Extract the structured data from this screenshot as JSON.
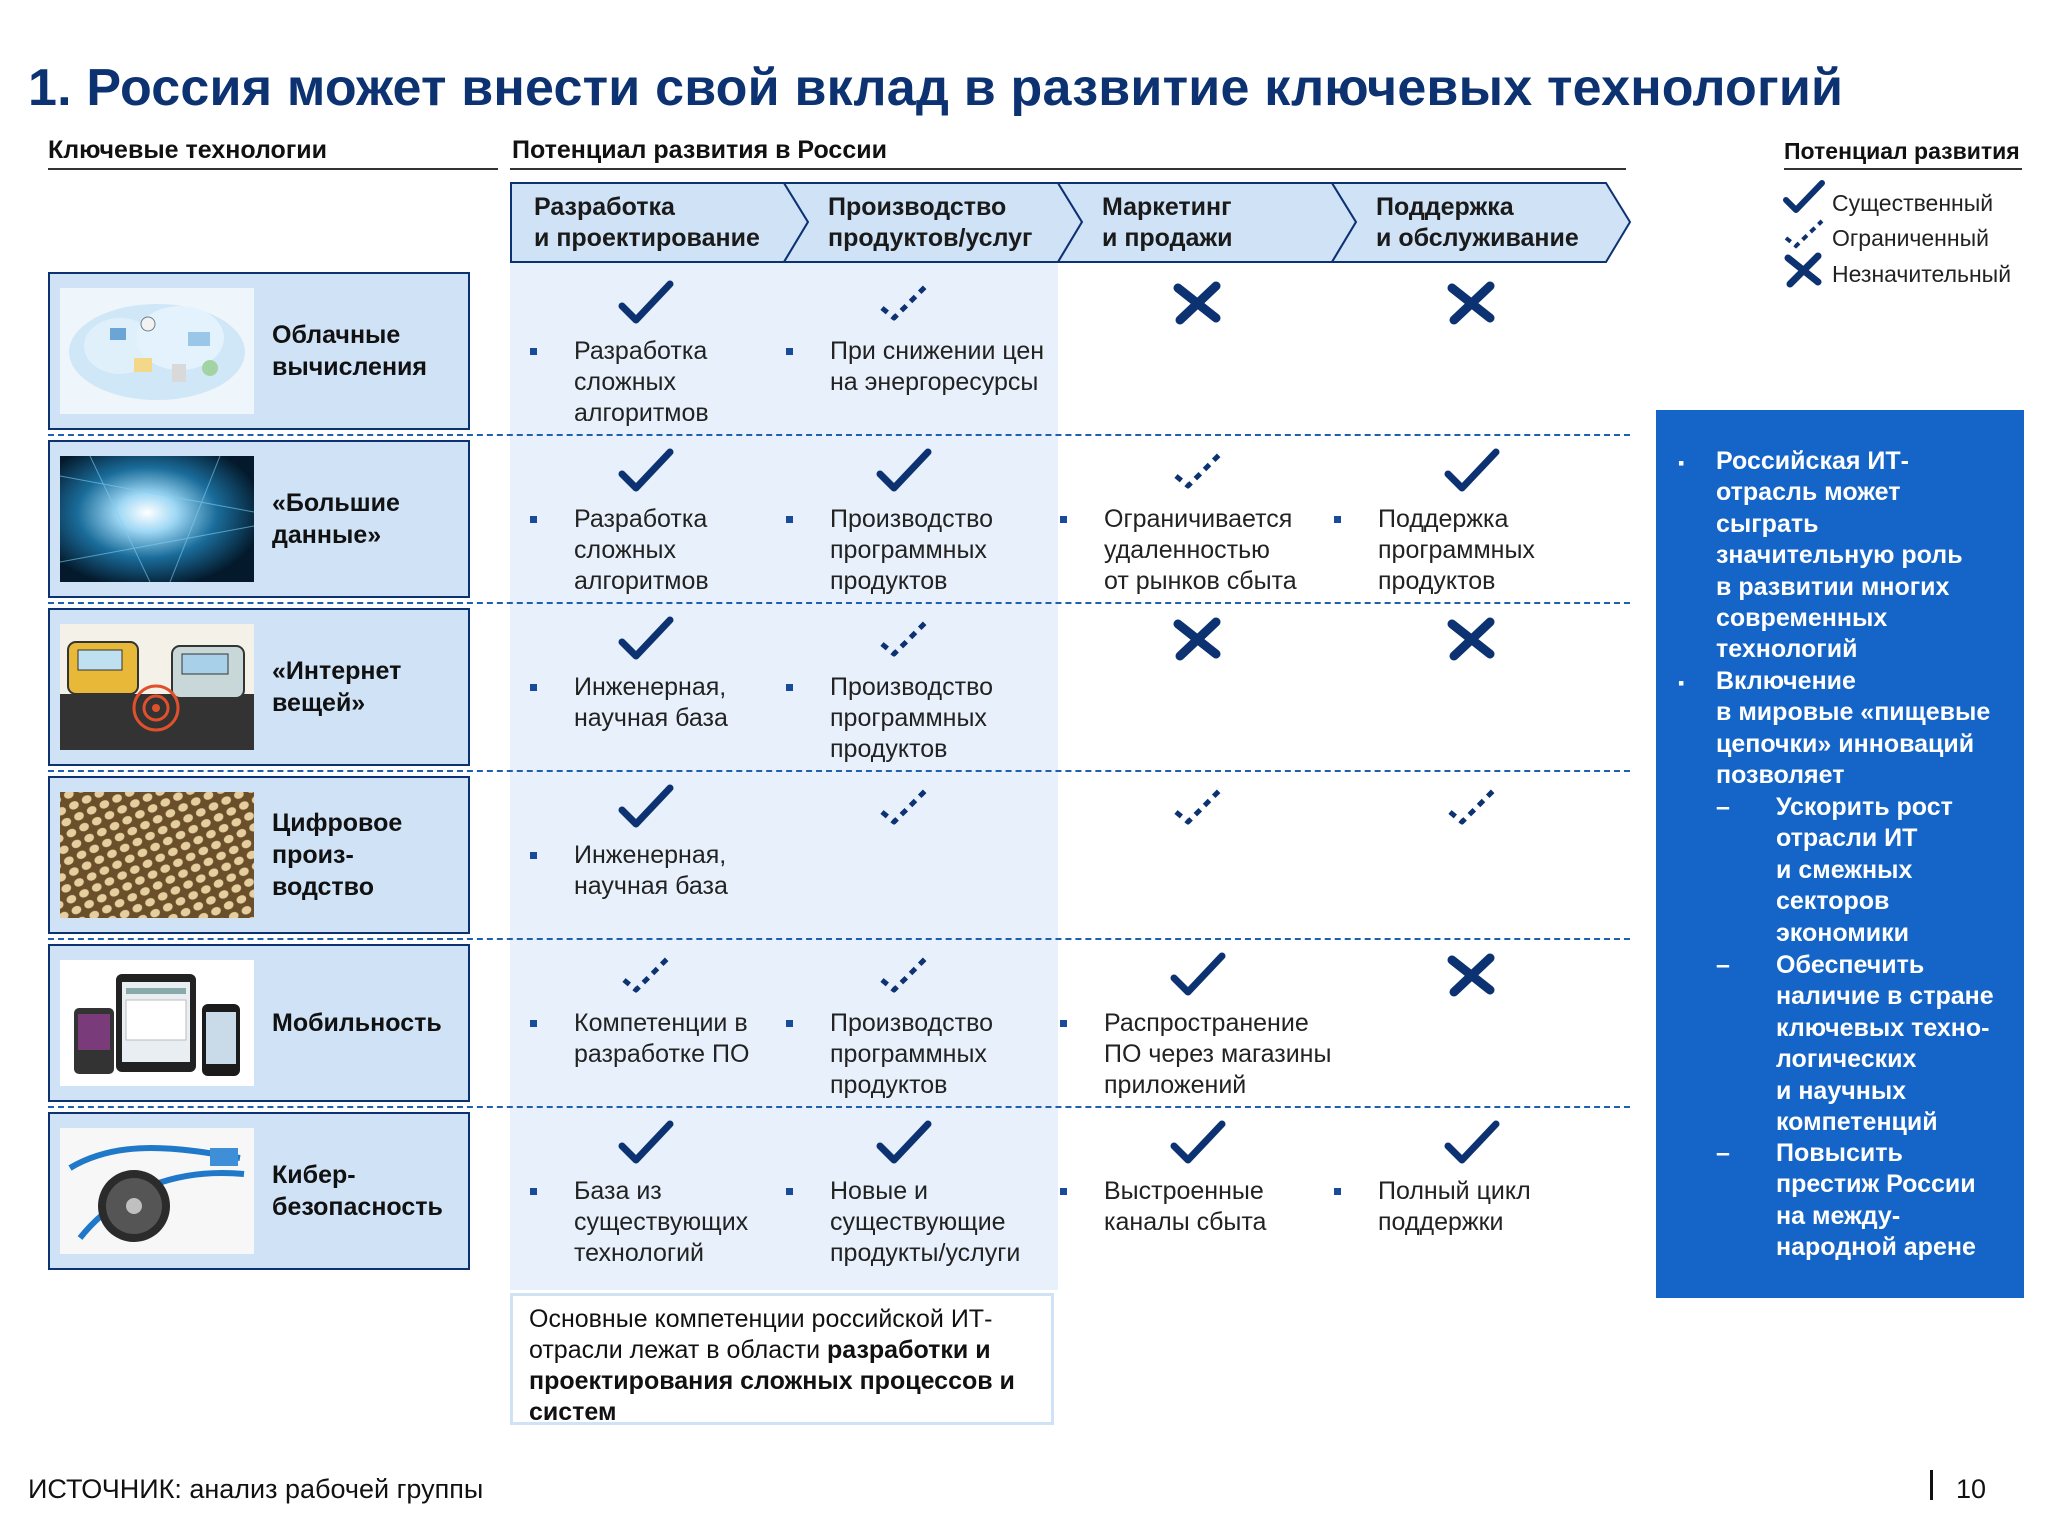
{
  "title": "1. Россия может внести свой вклад в развитие ключевых технологий",
  "headers": {
    "key_tech": "Ключевые технологии",
    "potential_russia": "Потенциал развития в России",
    "potential_legend": "Потенциал развития"
  },
  "chevrons": [
    "Разработка\nи проектирование",
    "Производство\nпродуктов/услуг",
    "Маркетинг\nи продажи",
    "Поддержка\nи обслуживание"
  ],
  "legend": [
    {
      "icon": "check-icon",
      "label": "Существенный"
    },
    {
      "icon": "dashed-check-icon",
      "label": "Ограниченный"
    },
    {
      "icon": "cross-icon",
      "label": "Незначительный"
    }
  ],
  "rows": [
    {
      "tech": "Облачные\nвычисления",
      "image": "cloud-computing-image",
      "cells": [
        {
          "mark": "check",
          "text": "Разработка\nсложных\nалгоритмов"
        },
        {
          "mark": "dashed",
          "text": "При снижении цен\nна энергоресурсы"
        },
        {
          "mark": "cross",
          "text": ""
        },
        {
          "mark": "cross",
          "text": ""
        }
      ]
    },
    {
      "tech": "«Большие\nданные»",
      "image": "big-data-image",
      "cells": [
        {
          "mark": "check",
          "text": "Разработка\nсложных\nалгоритмов"
        },
        {
          "mark": "check",
          "text": "Производство\nпрограммных\nпродуктов"
        },
        {
          "mark": "dashed",
          "text": "Ограничивается\nудаленностью\nот рынков сбыта"
        },
        {
          "mark": "check",
          "text": "Поддержка\nпрограммных\nпродуктов"
        }
      ]
    },
    {
      "tech": "«Интернет\nвещей»",
      "image": "internet-of-things-image",
      "cells": [
        {
          "mark": "check",
          "text": "Инженерная,\nнаучная база"
        },
        {
          "mark": "dashed",
          "text": "Производство\nпрограммных\nпродуктов"
        },
        {
          "mark": "cross",
          "text": ""
        },
        {
          "mark": "cross",
          "text": ""
        }
      ]
    },
    {
      "tech": "Цифровое\nпроиз-\nводство",
      "image": "digital-manufacturing-image",
      "cells": [
        {
          "mark": "check",
          "text": "Инженерная,\nнаучная база"
        },
        {
          "mark": "dashed",
          "text": ""
        },
        {
          "mark": "dashed",
          "text": ""
        },
        {
          "mark": "dashed",
          "text": ""
        }
      ]
    },
    {
      "tech": "Мобильность",
      "image": "mobility-image",
      "cells": [
        {
          "mark": "dashed",
          "text": "Компетенции в\nразработке ПО"
        },
        {
          "mark": "dashed",
          "text": "Производство\nпрограммных\nпродуктов"
        },
        {
          "mark": "check",
          "text": "Распространение\nПО через магазины\nприложений"
        },
        {
          "mark": "cross",
          "text": ""
        }
      ]
    },
    {
      "tech": "Кибер-\nбезопасность",
      "image": "cybersecurity-image",
      "cells": [
        {
          "mark": "check",
          "text": "База из\nсуществующих\nтехнологий"
        },
        {
          "mark": "check",
          "text": "Новые и\nсуществующие\nпродукты/услуги"
        },
        {
          "mark": "check",
          "text": "Выстроенные\nканалы сбыта"
        },
        {
          "mark": "check",
          "text": "Полный цикл\nподдержки"
        }
      ]
    }
  ],
  "note": {
    "text_plain": "Основные компетенции российской ИТ-отрасли лежат в области ",
    "text_bold": "разработки и проектирования сложных процессов и систем"
  },
  "sidebox": {
    "bullet1": "Российская ИТ-\nотрасль может\nсыграть\nзначительную роль\nв развитии многих\nсовременных\nтехнологий",
    "bullet2": "Включение\nв мировые «пищевые\nцепочки» инноваций\nпозволяет",
    "sub1": "Ускорить рост\nотрасли ИТ\nи смежных\nсекторов\nэкономики",
    "sub2": "Обеспечить\nналичие в стране\nключевых техно-\nлогических\nи научных\nкомпетенций",
    "sub3": "Повысить\nпрестиж России\nна между-\nнародной арене",
    "dash": "–"
  },
  "source": "ИСТОЧНИК: анализ рабочей группы",
  "page_number": "10",
  "colors": {
    "title": "#0d3272",
    "chevron_fill": "#cfe2f6",
    "mark": "#0d3272",
    "sidebox": "#1565c8",
    "band": "#e8f1fb"
  }
}
